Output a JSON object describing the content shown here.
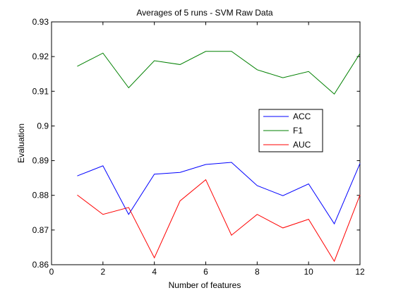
{
  "chart_data": {
    "type": "line",
    "title": "Averages of 5 runs - SVM Raw Data",
    "xlabel": "Number of features",
    "ylabel": "Evaluation",
    "xlim": [
      0,
      12
    ],
    "ylim": [
      0.86,
      0.93
    ],
    "x_ticks": [
      "0",
      "2",
      "4",
      "6",
      "8",
      "10",
      "12"
    ],
    "y_ticks": [
      "0.86",
      "0.87",
      "0.88",
      "0.89",
      "0.9",
      "0.91",
      "0.92",
      "0.93"
    ],
    "grid": false,
    "legend_position": "center-right",
    "x": [
      1,
      2,
      3,
      4,
      5,
      6,
      7,
      8,
      9,
      10,
      11,
      12
    ],
    "series": [
      {
        "name": "ACC",
        "color": "#0000ff",
        "values": [
          0.8856,
          0.8885,
          0.8745,
          0.8861,
          0.8866,
          0.8889,
          0.8895,
          0.8828,
          0.8799,
          0.8833,
          0.8718,
          0.8892
        ]
      },
      {
        "name": "F1",
        "color": "#008000",
        "values": [
          0.9172,
          0.921,
          0.911,
          0.9188,
          0.9177,
          0.9215,
          0.9215,
          0.9162,
          0.9139,
          0.9157,
          0.9092,
          0.9209
        ]
      },
      {
        "name": "AUC",
        "color": "#ff0000",
        "values": [
          0.8801,
          0.8745,
          0.8765,
          0.862,
          0.8784,
          0.8845,
          0.8685,
          0.8745,
          0.8706,
          0.8731,
          0.861,
          0.8801
        ]
      }
    ]
  }
}
